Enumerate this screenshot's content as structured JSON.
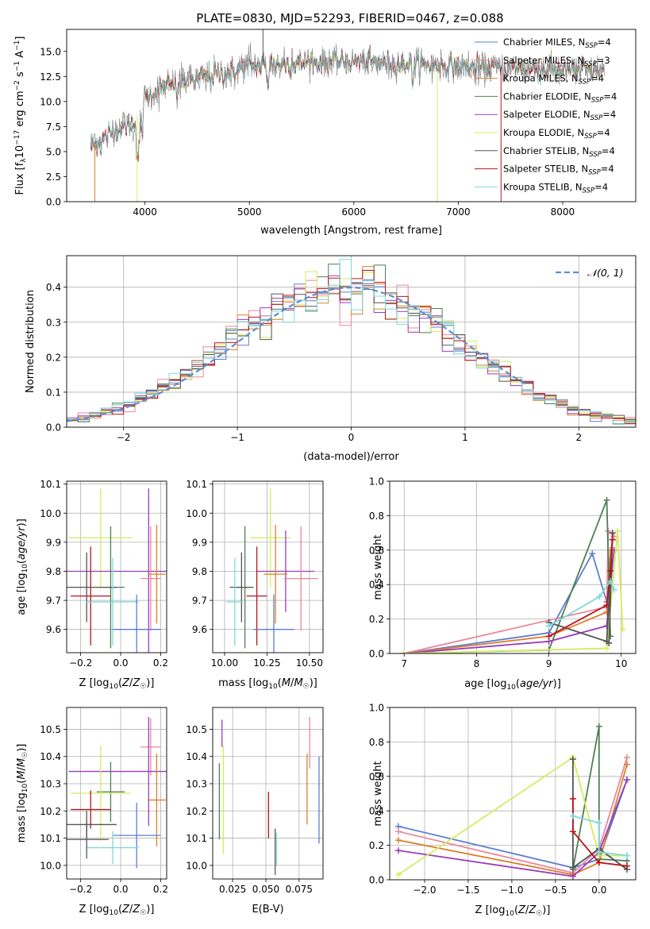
{
  "figure": {
    "title": "PLATE=0830, MJD=52293, FIBERID=0467, z=0.088"
  },
  "colors": {
    "Chabrier MILES": "#5b7fd1",
    "Salpeter MILES": "#e8879a",
    "Kroupa MILES": "#d9812e",
    "Chabrier ELODIE": "#4e7f55",
    "Salpeter ELODIE": "#9a3db8",
    "Kroupa ELODIE": "#d5ec5c",
    "Chabrier STELIB": "#555555",
    "Salpeter STELIB": "#b8141b",
    "Kroupa STELIB": "#7fd8d8",
    "normal_curve": "#5b8fd6",
    "data_spectrum": "#808080"
  },
  "chart_data": [
    {
      "id": "spectrum",
      "type": "line",
      "title": "PLATE=0830, MJD=52293, FIBERID=0467, z=0.088",
      "xlabel": "wavelength [Angstrom, rest frame]",
      "ylabel": "Flux [f_λ 10^-17 erg cm^-2 s^-1 A^-1]",
      "xlim": [
        3250,
        8700
      ],
      "ylim": [
        0,
        17.2
      ],
      "xticks": [
        "4000",
        "5000",
        "6000",
        "7000",
        "8000"
      ],
      "yticks": [
        "0.0",
        "2.5",
        "5.0",
        "7.5",
        "10.0",
        "12.5",
        "15.0"
      ],
      "grid": false,
      "legend_position": "top-right",
      "legend": [
        {
          "pre": "Chabrier MILES, N",
          "sub": "SSP",
          "post": "=4",
          "series": "Chabrier MILES"
        },
        {
          "pre": "Salpeter MILES, N",
          "sub": "SSP",
          "post": "=3",
          "series": "Salpeter MILES"
        },
        {
          "pre": "Kroupa MILES, N",
          "sub": "SSP",
          "post": "=4",
          "series": "Kroupa MILES"
        },
        {
          "pre": "Chabrier ELODIE, N",
          "sub": "SSP",
          "post": "=4",
          "series": "Chabrier ELODIE"
        },
        {
          "pre": "Salpeter ELODIE, N",
          "sub": "SSP",
          "post": "=4",
          "series": "Salpeter ELODIE"
        },
        {
          "pre": "Kroupa ELODIE, N",
          "sub": "SSP",
          "post": "=4",
          "series": "Kroupa ELODIE"
        },
        {
          "pre": "Chabrier STELIB, N",
          "sub": "SSP",
          "post": "=4",
          "series": "Chabrier STELIB"
        },
        {
          "pre": "Salpeter STELIB, N",
          "sub": "SSP",
          "post": "=4",
          "series": "Salpeter STELIB"
        },
        {
          "pre": "Kroupa STELIB, N",
          "sub": "SSP",
          "post": "=4",
          "series": "Kroupa STELIB"
        }
      ],
      "continuum": {
        "x": [
          3480,
          3700,
          3900,
          4000,
          4300,
          4600,
          5000,
          5400,
          5800,
          6200,
          6600,
          7000,
          7400,
          7800,
          8200,
          8400
        ],
        "y": [
          5.5,
          7.0,
          8.0,
          10.5,
          12.0,
          12.5,
          13.5,
          13.8,
          14.0,
          13.9,
          13.7,
          13.5,
          13.3,
          13.2,
          13.1,
          13.0
        ]
      },
      "notable_features": [
        {
          "series": "Chabrier STELIB",
          "x": 5130,
          "kind": "spike",
          "to": 17.2
        },
        {
          "series": "Kroupa ELODIE",
          "x": 3925,
          "kind": "drop",
          "to": 0.0
        },
        {
          "series": "Kroupa ELODIE",
          "x": 6800,
          "kind": "drop",
          "to": 0.0
        },
        {
          "series": "Salpeter STELIB",
          "x": 7410,
          "kind": "drop",
          "to": 0.0
        },
        {
          "series": "Kroupa MILES",
          "x": 3520,
          "kind": "drop",
          "to": 0.0
        }
      ]
    },
    {
      "id": "residuals",
      "type": "histogram",
      "xlabel": "(data-model)/error",
      "ylabel": "Normed distribution",
      "xlim": [
        -2.5,
        2.5
      ],
      "ylim": [
        0,
        0.49
      ],
      "xticks": [
        "−2",
        "−1",
        "0",
        "1",
        "2"
      ],
      "yticks": [
        "0.0",
        "0.1",
        "0.2",
        "0.3",
        "0.4"
      ],
      "grid": true,
      "legend_position": "top-right",
      "legend": [
        {
          "label": "𝒩(0, 1)",
          "series": "normal_curve"
        }
      ],
      "bin_width": 0.1,
      "reference_curve": "standard normal, dashed, x from −2.5 to 1.6"
    },
    {
      "id": "age_vs_Z",
      "type": "errorbar",
      "xlabel": "Z [log10(Z/Z☉)]",
      "ylabel": "age [log10(age/yr)]",
      "xlim": [
        -0.27,
        0.23
      ],
      "ylim": [
        9.52,
        10.11
      ],
      "xticks": [
        "−0.2",
        "0.0",
        "0.2"
      ],
      "yticks": [
        "9.6",
        "9.7",
        "9.8",
        "9.9",
        "10.0",
        "10.1"
      ],
      "grid": true,
      "points": [
        {
          "series": "Kroupa ELODIE",
          "x": -0.1,
          "xerr": 0.16,
          "y": 9.915,
          "yerr": 0.17
        },
        {
          "series": "Salpeter ELODIE",
          "x": 0.14,
          "xerr": 0.43,
          "y": 9.8,
          "yerr": 0.285
        },
        {
          "series": "Kroupa MILES",
          "x": 0.18,
          "xerr": 0.045,
          "y": 9.79,
          "yerr": 0.17
        },
        {
          "series": "Salpeter MILES",
          "x": 0.15,
          "xerr": 0.05,
          "y": 9.775,
          "yerr": 0.18
        },
        {
          "series": "Chabrier ELODIE",
          "x": -0.05,
          "xerr": 0.07,
          "y": 9.745,
          "yerr": 0.21
        },
        {
          "series": "Chabrier STELIB",
          "x": -0.17,
          "xerr": 0.15,
          "y": 9.745,
          "yerr": 0.12
        },
        {
          "series": "Salpeter STELIB",
          "x": -0.15,
          "xerr": 0.1,
          "y": 9.715,
          "yerr": 0.17
        },
        {
          "series": "Kroupa STELIB",
          "x": -0.04,
          "xerr": 0.13,
          "y": 9.695,
          "yerr": 0.15
        },
        {
          "series": "Chabrier MILES",
          "x": 0.08,
          "xerr": 0.12,
          "y": 9.6,
          "yerr": 0.12
        }
      ]
    },
    {
      "id": "age_vs_mass",
      "type": "errorbar",
      "xlabel": "mass [log10(M/M☉)]",
      "ylabel": "",
      "xlim": [
        9.93,
        10.58
      ],
      "ylim": [
        9.52,
        10.11
      ],
      "xticks": [
        "10.00",
        "10.25",
        "10.50"
      ],
      "yticks": [
        "9.6",
        "9.7",
        "9.8",
        "9.9",
        "10.0",
        "10.1"
      ],
      "grid": true,
      "points": [
        {
          "series": "Kroupa ELODIE",
          "x": 10.27,
          "xerr": 0.12,
          "y": 9.915,
          "yerr": 0.17
        },
        {
          "series": "Salpeter ELODIE",
          "x": 10.36,
          "xerr": 0.17,
          "y": 9.8,
          "yerr": 0.14
        },
        {
          "series": "Kroupa MILES",
          "x": 10.3,
          "xerr": 0.07,
          "y": 9.79,
          "yerr": 0.17
        },
        {
          "series": "Salpeter MILES",
          "x": 10.45,
          "xerr": 0.1,
          "y": 9.775,
          "yerr": 0.18
        },
        {
          "series": "Chabrier ELODIE",
          "x": 10.12,
          "xerr": 0.05,
          "y": 9.745,
          "yerr": 0.21
        },
        {
          "series": "Chabrier STELIB",
          "x": 10.1,
          "xerr": 0.07,
          "y": 9.745,
          "yerr": 0.12
        },
        {
          "series": "Salpeter STELIB",
          "x": 10.19,
          "xerr": 0.06,
          "y": 9.715,
          "yerr": 0.17
        },
        {
          "series": "Kroupa STELIB",
          "x": 10.06,
          "xerr": 0.05,
          "y": 9.695,
          "yerr": 0.15
        },
        {
          "series": "Chabrier MILES",
          "x": 10.29,
          "xerr": 0.12,
          "y": 9.6,
          "yerr": 0.12
        }
      ]
    },
    {
      "id": "massweight_vs_age",
      "type": "line",
      "xlabel": "age [log10(age/yr)]",
      "ylabel": "mass weight",
      "xlim": [
        6.8,
        10.2
      ],
      "ylim": [
        0,
        1.0
      ],
      "xticks": [
        "7",
        "8",
        "9",
        "10"
      ],
      "yticks": [
        "0.0",
        "0.2",
        "0.4",
        "0.6",
        "0.8",
        "1.0"
      ],
      "grid": true,
      "series": [
        {
          "name": "Chabrier MILES",
          "x": [
            7.0,
            9.0,
            9.6,
            9.8
          ],
          "y": [
            0.0,
            0.12,
            0.58,
            0.3
          ]
        },
        {
          "name": "Salpeter MILES",
          "x": [
            7.0,
            9.8,
            9.82,
            9.9
          ],
          "y": [
            0.0,
            0.27,
            0.71,
            0.68
          ]
        },
        {
          "name": "Kroupa MILES",
          "x": [
            7.0,
            9.0,
            9.8,
            9.85
          ],
          "y": [
            0.0,
            0.1,
            0.24,
            0.6
          ]
        },
        {
          "name": "Chabrier ELODIE",
          "x": [
            7.0,
            9.0,
            9.8,
            9.85
          ],
          "y": [
            0.0,
            0.02,
            0.89,
            0.1
          ]
        },
        {
          "name": "Salpeter ELODIE",
          "x": [
            7.0,
            9.0,
            9.8,
            9.9
          ],
          "y": [
            0.0,
            0.07,
            0.16,
            0.6
          ]
        },
        {
          "name": "Kroupa ELODIE",
          "x": [
            7.0,
            9.8,
            9.95,
            10.02
          ],
          "y": [
            0.0,
            0.03,
            0.71,
            0.14
          ]
        },
        {
          "name": "Chabrier STELIB",
          "x": [
            9.0,
            9.8,
            9.88,
            9.83
          ],
          "y": [
            0.18,
            0.07,
            0.7,
            0.06
          ]
        },
        {
          "name": "Salpeter STELIB",
          "x": [
            9.0,
            9.8,
            9.85,
            9.88
          ],
          "y": [
            0.1,
            0.28,
            0.48,
            0.66
          ]
        },
        {
          "name": "Kroupa STELIB",
          "x": [
            9.0,
            9.7,
            9.85,
            9.9
          ],
          "y": [
            0.16,
            0.33,
            0.42,
            0.37
          ]
        }
      ]
    },
    {
      "id": "mass_vs_Z",
      "type": "errorbar",
      "xlabel": "Z [log10(Z/Z☉)]",
      "ylabel": "mass [log10(M/M☉)]",
      "xlim": [
        -0.27,
        0.23
      ],
      "ylim": [
        9.95,
        10.58
      ],
      "xticks": [
        "−0.2",
        "0.0",
        "0.2"
      ],
      "yticks": [
        "10.0",
        "10.1",
        "10.2",
        "10.3",
        "10.4",
        "10.5"
      ],
      "grid": true,
      "points": [
        {
          "series": "Salpeter MILES",
          "x": 0.15,
          "xerr": 0.05,
          "y": 10.435,
          "yerr": 0.105
        },
        {
          "series": "Salpeter ELODIE",
          "x": 0.14,
          "xerr": 0.4,
          "y": 10.345,
          "yerr": 0.2
        },
        {
          "series": "Chabrier ELODIE",
          "x": -0.05,
          "xerr": 0.07,
          "y": 10.27,
          "yerr": 0.11
        },
        {
          "series": "Kroupa ELODIE",
          "x": -0.1,
          "xerr": 0.15,
          "y": 10.265,
          "yerr": 0.175
        },
        {
          "series": "Kroupa MILES",
          "x": 0.18,
          "xerr": 0.045,
          "y": 10.24,
          "yerr": 0.17
        },
        {
          "series": "Salpeter STELIB",
          "x": -0.15,
          "xerr": 0.1,
          "y": 10.205,
          "yerr": 0.07
        },
        {
          "series": "Chabrier STELIB",
          "x": -0.17,
          "xerr": 0.15,
          "y": 10.15,
          "yerr": 0.05
        },
        {
          "series": "Chabrier MILES",
          "x": 0.08,
          "xerr": 0.12,
          "y": 10.11,
          "yerr": 0.12
        },
        {
          "series": "Kroupa STELIB",
          "x": -0.04,
          "xerr": 0.13,
          "y": 10.065,
          "yerr": 0.06
        },
        {
          "series": "Chabrier STELIB",
          "x": -0.17,
          "xerr": 0.11,
          "y": 10.095,
          "yerr": 0.07
        }
      ]
    },
    {
      "id": "mass_vs_EBV",
      "type": "errorbar",
      "xlabel": "E(B-V)",
      "ylabel": "",
      "xlim": [
        0.01,
        0.093
      ],
      "ylim": [
        9.95,
        10.58
      ],
      "xticks": [
        "0.025",
        "0.050",
        "0.075"
      ],
      "yticks": [
        "10.0",
        "10.1",
        "10.2",
        "10.3",
        "10.4",
        "10.5"
      ],
      "grid": true,
      "points": [
        {
          "series": "Chabrier ELODIE",
          "x": 0.015,
          "y": 10.235,
          "yerr": 0.14
        },
        {
          "series": "Salpeter ELODIE",
          "x": 0.017,
          "y": 10.485,
          "yerr": 0.05
        },
        {
          "series": "Kroupa ELODIE",
          "x": 0.018,
          "y": 10.24,
          "yerr": 0.2
        },
        {
          "series": "Salpeter STELIB",
          "x": 0.052,
          "y": 10.185,
          "yerr": 0.085
        },
        {
          "series": "Chabrier STELIB",
          "x": 0.057,
          "y": 10.05,
          "yerr": 0.085
        },
        {
          "series": "Kroupa STELIB",
          "x": 0.058,
          "y": 10.06,
          "yerr": 0.06
        },
        {
          "series": "Kroupa MILES",
          "x": 0.081,
          "y": 10.28,
          "yerr": 0.13
        },
        {
          "series": "Salpeter MILES",
          "x": 0.083,
          "y": 10.45,
          "yerr": 0.095
        },
        {
          "series": "Chabrier MILES",
          "x": 0.09,
          "y": 10.24,
          "yerr": 0.16
        }
      ]
    },
    {
      "id": "massweight_vs_Z",
      "type": "line",
      "xlabel": "Z [log10(Z/Z☉)]",
      "ylabel": "mass weight",
      "xlim": [
        -2.4,
        0.42
      ],
      "ylim": [
        0,
        1.0
      ],
      "xticks": [
        "−2.0",
        "−1.5",
        "−1.0",
        "−0.5",
        "0.0"
      ],
      "yticks": [
        "0.0",
        "0.2",
        "0.4",
        "0.6",
        "0.8",
        "1.0"
      ],
      "grid": true,
      "series": [
        {
          "name": "Chabrier MILES",
          "x": [
            -2.3,
            -0.3,
            0.0,
            0.32
          ],
          "y": [
            0.31,
            0.07,
            0.12,
            0.58
          ]
        },
        {
          "name": "Salpeter MILES",
          "x": [
            -2.3,
            -0.3,
            0.0,
            0.32
          ],
          "y": [
            0.28,
            0.04,
            0.18,
            0.71
          ]
        },
        {
          "name": "Kroupa MILES",
          "x": [
            -2.3,
            -0.3,
            0.0,
            0.32
          ],
          "y": [
            0.23,
            0.03,
            0.1,
            0.67
          ]
        },
        {
          "name": "Chabrier ELODIE",
          "x": [
            -0.3,
            0.0,
            0.0,
            0.32
          ],
          "y": [
            0.06,
            0.89,
            0.12,
            0.11
          ]
        },
        {
          "name": "Salpeter ELODIE",
          "x": [
            -2.3,
            -0.3,
            0.0,
            0.32
          ],
          "y": [
            0.17,
            0.02,
            0.16,
            0.58
          ]
        },
        {
          "name": "Kroupa ELODIE",
          "x": [
            -2.3,
            -0.3,
            0.0,
            0.32
          ],
          "y": [
            0.03,
            0.71,
            0.14,
            0.14
          ]
        },
        {
          "name": "Chabrier STELIB",
          "x": [
            -0.3,
            -0.3,
            0.0,
            0.32
          ],
          "y": [
            0.7,
            0.07,
            0.18,
            0.06
          ]
        },
        {
          "name": "Salpeter STELIB",
          "x": [
            -0.3,
            -0.3,
            0.0,
            0.32
          ],
          "y": [
            0.47,
            0.28,
            0.1,
            0.08
          ]
        },
        {
          "name": "Kroupa STELIB",
          "x": [
            -0.3,
            0.0,
            0.0,
            0.32
          ],
          "y": [
            0.37,
            0.33,
            0.16,
            0.14
          ]
        }
      ]
    }
  ]
}
